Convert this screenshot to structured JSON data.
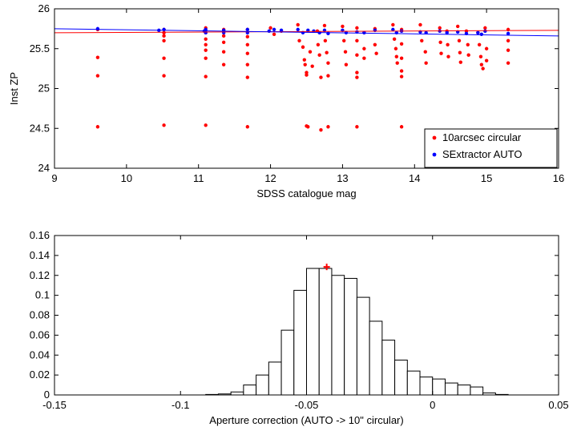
{
  "chart_data": [
    {
      "type": "scatter",
      "title": "",
      "xlabel": "SDSS catalogue mag",
      "ylabel": "Inst ZP",
      "xlim": [
        9,
        16
      ],
      "ylim": [
        24,
        26
      ],
      "xticks": [
        "9",
        "10",
        "11",
        "12",
        "13",
        "14",
        "15",
        "16"
      ],
      "yticks": [
        "24",
        "24.5",
        "25",
        "25.5",
        "26"
      ],
      "legend_position": "bottom-right",
      "series": [
        {
          "name": "10arcsec circular",
          "color": "#ff0000",
          "marker": "dot",
          "x_groups": [
            9.6,
            10.45,
            10.52,
            11.08,
            11.1,
            11.35,
            11.68,
            11.98,
            12.05,
            12.15,
            12.38,
            12.45,
            12.52,
            12.6,
            12.68,
            12.75,
            12.8,
            13.0,
            13.05,
            13.2,
            13.3,
            13.45,
            13.7,
            13.75,
            13.82,
            14.08,
            14.16,
            14.35,
            14.45,
            14.6,
            14.72,
            14.88,
            14.93,
            14.98,
            15.3
          ],
          "points": [
            [
              9.6,
              25.74
            ],
            [
              9.6,
              25.39
            ],
            [
              9.6,
              25.16
            ],
            [
              9.6,
              24.52
            ],
            [
              10.52,
              25.74
            ],
            [
              10.52,
              25.7
            ],
            [
              10.52,
              25.66
            ],
            [
              10.52,
              25.6
            ],
            [
              10.52,
              25.38
            ],
            [
              10.52,
              25.16
            ],
            [
              10.52,
              24.54
            ],
            [
              11.1,
              25.76
            ],
            [
              11.1,
              25.7
            ],
            [
              11.1,
              25.62
            ],
            [
              11.1,
              25.55
            ],
            [
              11.1,
              25.48
            ],
            [
              11.1,
              25.38
            ],
            [
              11.1,
              25.15
            ],
            [
              11.1,
              24.54
            ],
            [
              11.35,
              25.74
            ],
            [
              11.35,
              25.66
            ],
            [
              11.35,
              25.58
            ],
            [
              11.35,
              25.46
            ],
            [
              11.35,
              25.3
            ],
            [
              11.68,
              25.74
            ],
            [
              11.68,
              25.65
            ],
            [
              11.68,
              25.55
            ],
            [
              11.68,
              25.44
            ],
            [
              11.68,
              25.3
            ],
            [
              11.68,
              25.14
            ],
            [
              11.68,
              24.52
            ],
            [
              12.0,
              25.76
            ],
            [
              12.05,
              25.68
            ],
            [
              12.15,
              25.72
            ],
            [
              12.38,
              25.8
            ],
            [
              12.4,
              25.6
            ],
            [
              12.45,
              25.52
            ],
            [
              12.47,
              25.36
            ],
            [
              12.48,
              25.3
            ],
            [
              12.5,
              25.2
            ],
            [
              12.5,
              25.17
            ],
            [
              12.5,
              24.53
            ],
            [
              12.52,
              24.52
            ],
            [
              12.55,
              25.46
            ],
            [
              12.58,
              25.28
            ],
            [
              12.65,
              25.72
            ],
            [
              12.66,
              25.55
            ],
            [
              12.68,
              25.42
            ],
            [
              12.7,
              25.14
            ],
            [
              12.7,
              24.48
            ],
            [
              12.75,
              25.79
            ],
            [
              12.76,
              25.6
            ],
            [
              12.78,
              25.45
            ],
            [
              12.8,
              25.32
            ],
            [
              12.8,
              25.16
            ],
            [
              12.8,
              24.52
            ],
            [
              13.0,
              25.78
            ],
            [
              13.02,
              25.6
            ],
            [
              13.04,
              25.46
            ],
            [
              13.05,
              25.3
            ],
            [
              13.2,
              25.76
            ],
            [
              13.2,
              25.6
            ],
            [
              13.2,
              25.42
            ],
            [
              13.2,
              25.2
            ],
            [
              13.2,
              25.14
            ],
            [
              13.2,
              24.52
            ],
            [
              13.3,
              25.7
            ],
            [
              13.3,
              25.5
            ],
            [
              13.3,
              25.38
            ],
            [
              13.45,
              25.75
            ],
            [
              13.45,
              25.55
            ],
            [
              13.47,
              25.44
            ],
            [
              13.7,
              25.8
            ],
            [
              13.72,
              25.62
            ],
            [
              13.74,
              25.5
            ],
            [
              13.75,
              25.4
            ],
            [
              13.76,
              25.32
            ],
            [
              13.82,
              25.74
            ],
            [
              13.82,
              25.56
            ],
            [
              13.82,
              25.38
            ],
            [
              13.82,
              25.22
            ],
            [
              13.82,
              25.15
            ],
            [
              13.82,
              24.52
            ],
            [
              14.08,
              25.8
            ],
            [
              14.1,
              25.6
            ],
            [
              14.15,
              25.46
            ],
            [
              14.16,
              25.32
            ],
            [
              14.16,
              24.46
            ],
            [
              14.35,
              25.76
            ],
            [
              14.36,
              25.58
            ],
            [
              14.37,
              25.44
            ],
            [
              14.45,
              25.72
            ],
            [
              14.46,
              25.55
            ],
            [
              14.47,
              25.4
            ],
            [
              14.6,
              25.78
            ],
            [
              14.62,
              25.6
            ],
            [
              14.63,
              25.45
            ],
            [
              14.64,
              25.33
            ],
            [
              14.72,
              25.72
            ],
            [
              14.74,
              25.55
            ],
            [
              14.75,
              25.42
            ],
            [
              14.88,
              25.7
            ],
            [
              14.9,
              25.55
            ],
            [
              14.92,
              25.4
            ],
            [
              14.93,
              25.3
            ],
            [
              14.95,
              25.25
            ],
            [
              14.98,
              25.76
            ],
            [
              15.0,
              25.5
            ],
            [
              15.0,
              25.35
            ],
            [
              15.3,
              25.74
            ],
            [
              15.3,
              25.6
            ],
            [
              15.3,
              25.48
            ],
            [
              15.3,
              25.32
            ]
          ],
          "fit_line": [
            [
              9,
              25.7
            ],
            [
              16,
              25.73
            ]
          ]
        },
        {
          "name": "SExtractor AUTO",
          "color": "#0000ff",
          "marker": "dot",
          "points": [
            [
              9.6,
              25.75
            ],
            [
              10.45,
              25.73
            ],
            [
              10.52,
              25.74
            ],
            [
              11.08,
              25.72
            ],
            [
              11.1,
              25.74
            ],
            [
              11.1,
              25.7
            ],
            [
              11.35,
              25.73
            ],
            [
              11.35,
              25.7
            ],
            [
              11.68,
              25.74
            ],
            [
              11.68,
              25.7
            ],
            [
              11.98,
              25.72
            ],
            [
              12.05,
              25.74
            ],
            [
              12.15,
              25.73
            ],
            [
              12.38,
              25.74
            ],
            [
              12.45,
              25.7
            ],
            [
              12.52,
              25.73
            ],
            [
              12.6,
              25.72
            ],
            [
              12.68,
              25.7
            ],
            [
              12.75,
              25.73
            ],
            [
              12.8,
              25.69
            ],
            [
              13.0,
              25.73
            ],
            [
              13.05,
              25.7
            ],
            [
              13.2,
              25.71
            ],
            [
              13.3,
              25.7
            ],
            [
              13.45,
              25.73
            ],
            [
              13.7,
              25.74
            ],
            [
              13.75,
              25.7
            ],
            [
              13.82,
              25.72
            ],
            [
              14.08,
              25.71
            ],
            [
              14.16,
              25.7
            ],
            [
              14.35,
              25.72
            ],
            [
              14.45,
              25.7
            ],
            [
              14.6,
              25.71
            ],
            [
              14.72,
              25.69
            ],
            [
              14.88,
              25.7
            ],
            [
              14.93,
              25.68
            ],
            [
              14.98,
              25.72
            ],
            [
              15.3,
              25.69
            ]
          ],
          "fit_line": [
            [
              9,
              25.75
            ],
            [
              16,
              25.66
            ]
          ]
        }
      ]
    },
    {
      "type": "bar",
      "title": "",
      "xlabel": "Aperture correction (AUTO -> 10\" circular)",
      "ylabel": "",
      "xlim": [
        -0.15,
        0.05
      ],
      "ylim": [
        0,
        0.16
      ],
      "xticks": [
        "-0.15",
        "-0.1",
        "-0.05",
        "0",
        "0.05"
      ],
      "yticks": [
        "0",
        "0.02",
        "0.04",
        "0.06",
        "0.08",
        "0.1",
        "0.12",
        "0.14",
        "0.16"
      ],
      "bin_width": 0.005,
      "bins": [
        {
          "left": -0.09,
          "value": 0.0005
        },
        {
          "left": -0.085,
          "value": 0.001
        },
        {
          "left": -0.08,
          "value": 0.003
        },
        {
          "left": -0.075,
          "value": 0.01
        },
        {
          "left": -0.07,
          "value": 0.02
        },
        {
          "left": -0.065,
          "value": 0.033
        },
        {
          "left": -0.06,
          "value": 0.065
        },
        {
          "left": -0.055,
          "value": 0.105
        },
        {
          "left": -0.05,
          "value": 0.127
        },
        {
          "left": -0.045,
          "value": 0.127
        },
        {
          "left": -0.04,
          "value": 0.12
        },
        {
          "left": -0.035,
          "value": 0.117
        },
        {
          "left": -0.03,
          "value": 0.098
        },
        {
          "left": -0.025,
          "value": 0.074
        },
        {
          "left": -0.02,
          "value": 0.055
        },
        {
          "left": -0.015,
          "value": 0.035
        },
        {
          "left": -0.01,
          "value": 0.024
        },
        {
          "left": -0.005,
          "value": 0.018
        },
        {
          "left": 0.0,
          "value": 0.016
        },
        {
          "left": 0.005,
          "value": 0.012
        },
        {
          "left": 0.01,
          "value": 0.01
        },
        {
          "left": 0.015,
          "value": 0.008
        },
        {
          "left": 0.02,
          "value": 0.002
        },
        {
          "left": 0.025,
          "value": 0.0005
        }
      ],
      "marker": {
        "x": -0.042,
        "y": 0.1285,
        "color": "#ff0000",
        "symbol": "+"
      }
    }
  ]
}
